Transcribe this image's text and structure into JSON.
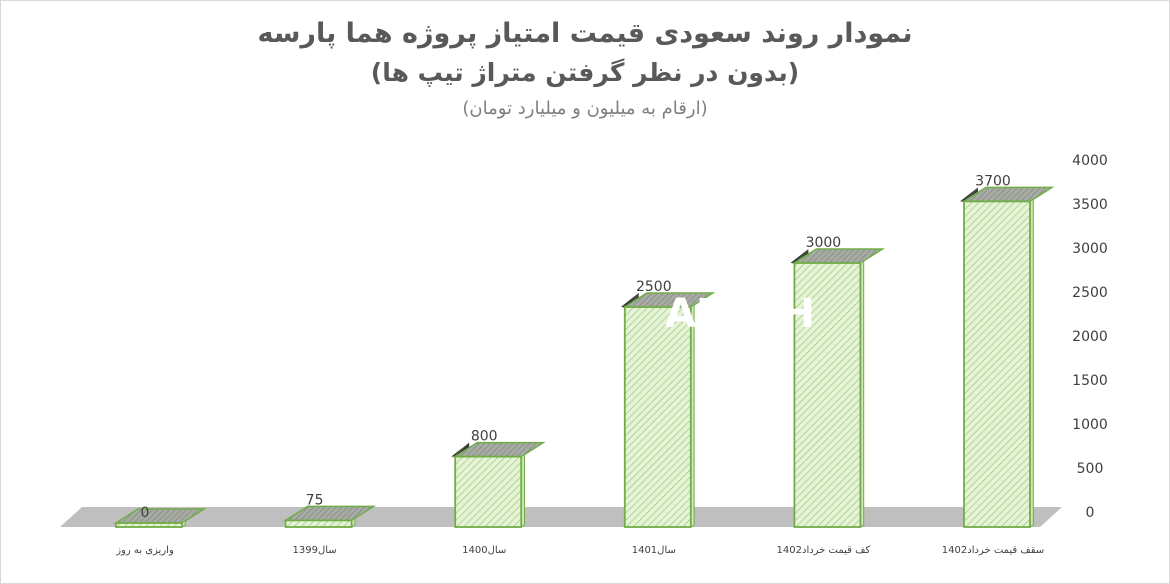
{
  "chart_data": {
    "type": "bar",
    "title": "نمودار روند سعودی قیمت امتیاز پروژه هما پارسه",
    "subtitle": "(بدون در نظر گرفتن متراژ تیپ ها)",
    "note": "(ارقام به میلیون و میلیارد تومان)",
    "categories": [
      "واریزی به روز",
      "سال1399",
      "سال1400",
      "سال1401",
      "کف قیمت خرداد1402",
      "سقف قیمت خرداد1402"
    ],
    "values": [
      0,
      75,
      800,
      2500,
      3000,
      3700
    ],
    "data_labels": [
      "0",
      "75",
      "800",
      "2500",
      "3000",
      "3700"
    ],
    "yticks": [
      "0",
      "500",
      "1000",
      "1500",
      "2000",
      "2500",
      "3000",
      "3500",
      "4000"
    ],
    "ylim": [
      0,
      4000
    ],
    "xlabel": "",
    "ylabel": "",
    "grid": false,
    "legend": "none",
    "colors": {
      "bar_face": "#e2f0d0",
      "bar_edge": "#70ad47",
      "bar_top": "#a9a9a9",
      "bar_side": "#404040",
      "floor": "#bfbfbf"
    }
  },
  "watermark": "AREEH"
}
